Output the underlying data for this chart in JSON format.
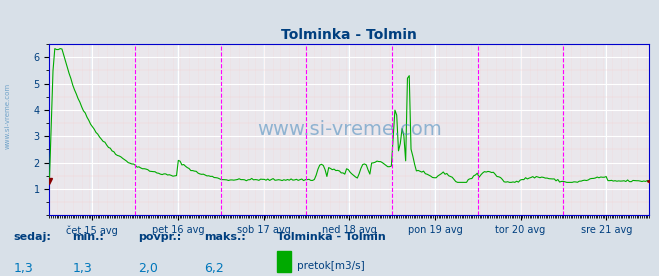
{
  "title": "Tolminka - Tolmin",
  "title_color": "#003f7f",
  "bg_color": "#d8e0e8",
  "plot_bg_color": "#e8eef4",
  "line_color": "#00aa00",
  "grid_color_major": "#ffffff",
  "grid_color_minor": "#f5d0d0",
  "vline_color": "#ff00ff",
  "border_color": "#0000cc",
  "ylim": [
    0,
    6.5
  ],
  "yticks": [
    1,
    2,
    3,
    4,
    5,
    6
  ],
  "ylabel_color": "#003f7f",
  "xlabel_color": "#003f7f",
  "xtick_labels": [
    "čet 15 avg",
    "pet 16 avg",
    "sob 17 avg",
    "ned 18 avg",
    "pon 19 avg",
    "tor 20 avg",
    "sre 21 avg"
  ],
  "num_points": 336,
  "watermark": "www.si-vreme.com",
  "watermark_color": "#4488bb",
  "footer_labels": [
    "sedaj:",
    "min.:",
    "povpr.:",
    "maks.:"
  ],
  "footer_values": [
    "1,3",
    "1,3",
    "2,0",
    "6,2"
  ],
  "footer_station": "Tolminka - Tolmin",
  "footer_legend": "pretok[m3/s]",
  "footer_color": "#003f7f",
  "footer_value_color": "#0077bb"
}
